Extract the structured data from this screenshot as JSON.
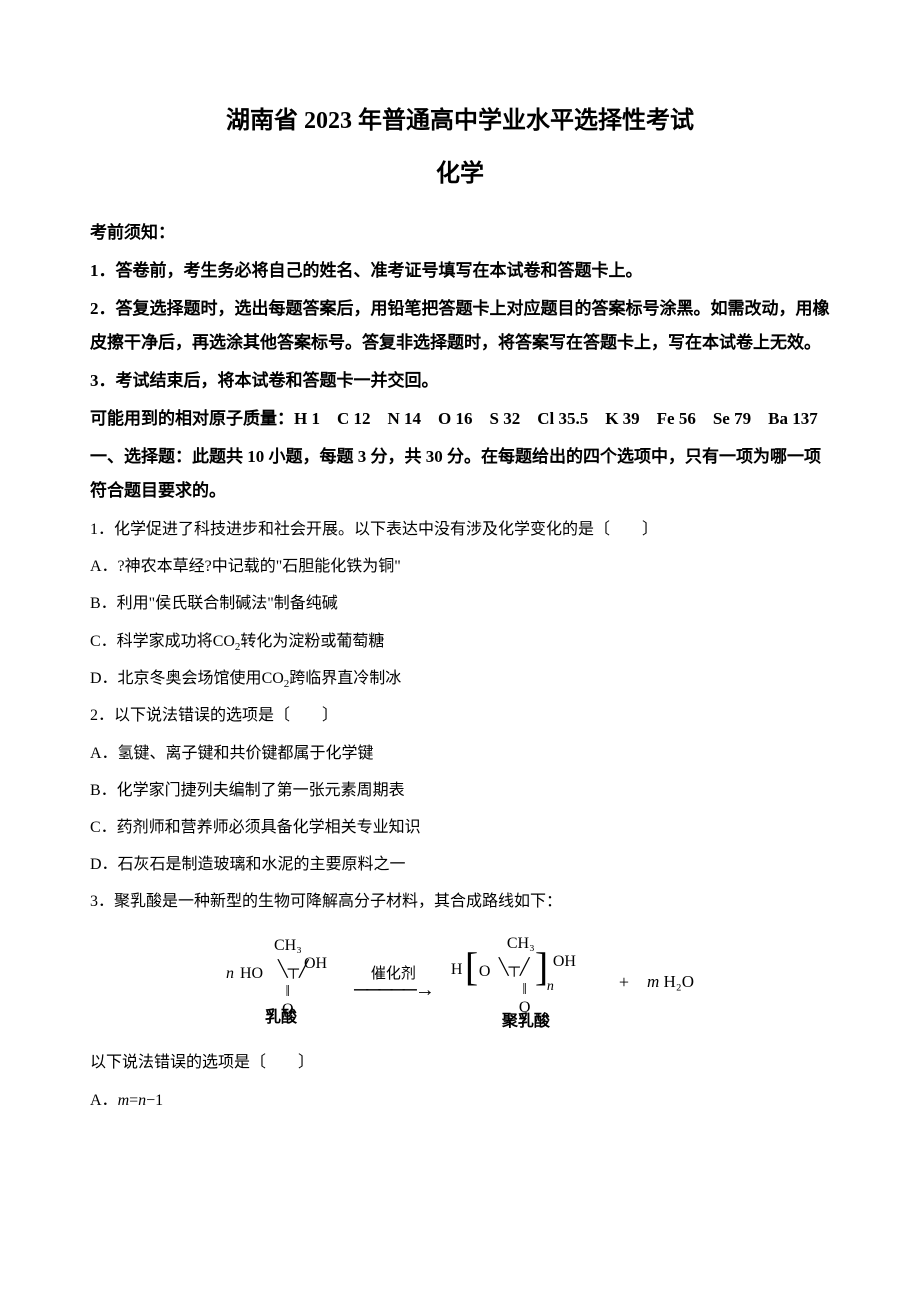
{
  "title": {
    "main": "湖南省 2023 年普通高中学业水平选择性考试",
    "sub": "化学"
  },
  "instructions": {
    "header": "考前须知：",
    "items": [
      "1．答卷前，考生务必将自己的姓名、准考证号填写在本试卷和答题卡上。",
      "2．答复选择题时，选出每题答案后，用铅笔把答题卡上对应题目的答案标号涂黑。如需改动，用橡皮擦干净后，再选涂其他答案标号。答复非选择题时，将答案写在答题卡上，写在本试卷上无效。",
      "3．考试结束后，将本试卷和答题卡一并交回。"
    ],
    "atomic_mass": "可能用到的相对原子质量：H 1　C 12　N 14　O 16　S 32　Cl 35.5　K 39　Fe 56　Se 79　Ba 137"
  },
  "section1": {
    "header": "一、选择题：此题共 10 小题，每题 3 分，共 30 分。在每题给出的四个选项中，只有一项为哪一项符合题目要求的。"
  },
  "q1": {
    "stem": "1．化学促进了科技进步和社会开展。以下表达中没有涉及化学变化的是〔　　〕",
    "A": "A．?神农本草经?中记载的\"石胆能化铁为铜\"",
    "B": "B．利用\"侯氏联合制碱法\"制备纯碱",
    "C_pre": "C．科学家成功将",
    "C_post": "转化为淀粉或葡萄糖",
    "D_pre": "D．北京冬奥会场馆使用",
    "D_post": "跨临界直冷制冰"
  },
  "q2": {
    "stem": "2．以下说法错误的选项是〔　　〕",
    "A": "A．氢键、离子键和共价键都属于化学键",
    "B": "B．化学家门捷列夫编制了第一张元素周期表",
    "C": "C．药剂师和营养师必须具备化学相关专业知识",
    "D": "D．石灰石是制造玻璃和水泥的主要原料之一"
  },
  "q3": {
    "stem": "3．聚乳酸是一种新型的生物可降解高分子材料，其合成路线如下：",
    "reaction": {
      "reactant_label": "乳酸",
      "arrow_label": "催化剂",
      "product_label": "聚乳酸",
      "plus": "+",
      "water_m": "m",
      "water_formula": "H₂O"
    },
    "followup": "以下说法错误的选项是〔　　〕",
    "A_pre": "A．",
    "A_m": "m",
    "A_eq": "=",
    "A_n": "n",
    "A_post": "−1"
  },
  "chem": {
    "co2": "CO",
    "sub2": "2"
  }
}
